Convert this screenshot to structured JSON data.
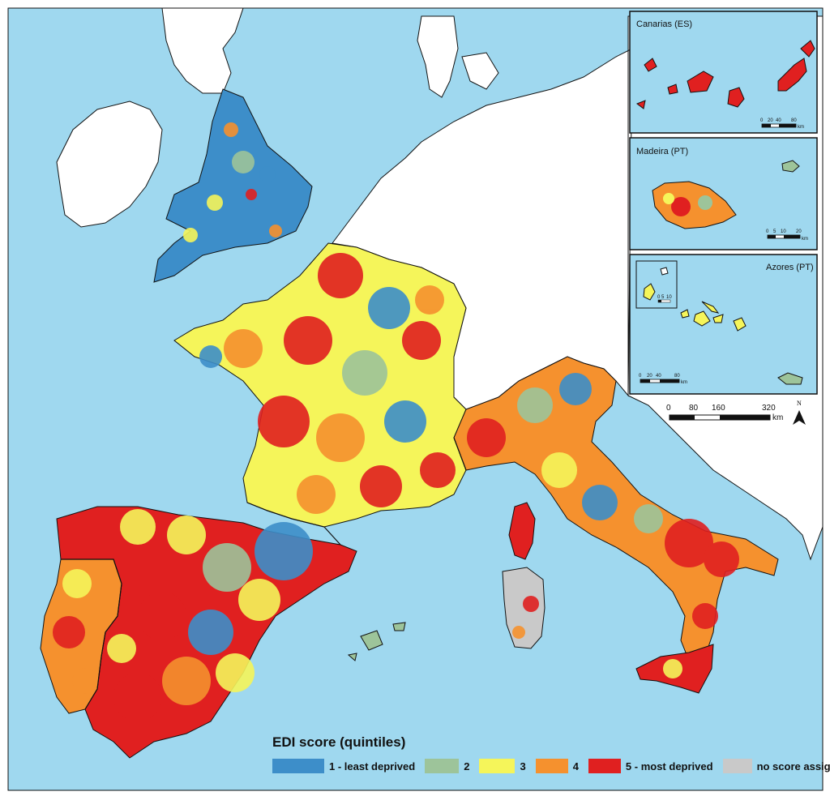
{
  "colors": {
    "sea": "#9fd8ef",
    "land_nodata": "#ffffff",
    "border": "#111111",
    "q1": "#3d8ec9",
    "q2": "#9dc49a",
    "q3": "#f5f55a",
    "q4": "#f5912e",
    "q5": "#e02020",
    "no_score": "#c9c9c9"
  },
  "legend": {
    "title": "EDI score (quintiles)",
    "items": [
      {
        "label": "1 - least deprived",
        "color": "#3d8ec9"
      },
      {
        "label": "2",
        "color": "#9dc49a"
      },
      {
        "label": "3",
        "color": "#f5f55a"
      },
      {
        "label": "4",
        "color": "#f5912e"
      },
      {
        "label": "5 - most deprived",
        "color": "#e02020"
      },
      {
        "label": "no score assigned",
        "color": "#c9c9c9"
      }
    ]
  },
  "insets": {
    "canarias": {
      "title": "Canarias (ES)",
      "scale_ticks": [
        "0",
        "20",
        "40",
        "80"
      ],
      "scale_unit": "km"
    },
    "madeira": {
      "title": "Madeira (PT)",
      "scale_ticks": [
        "0",
        "5",
        "10",
        "20"
      ],
      "scale_unit": "km"
    },
    "azores": {
      "title": "Azores (PT)",
      "scale_ticks": [
        "0",
        "20",
        "40",
        "80"
      ],
      "scale_unit": "km",
      "sub_scale_ticks": [
        "0",
        "5",
        "10"
      ]
    }
  },
  "main_scale": {
    "ticks": [
      "0",
      "80",
      "160",
      "320"
    ],
    "unit": "km"
  },
  "north_arrow": {
    "label": "N"
  }
}
